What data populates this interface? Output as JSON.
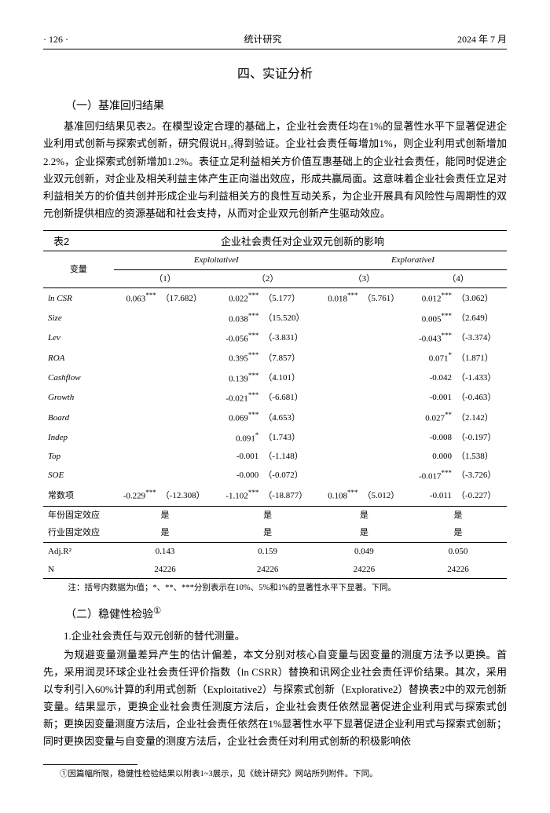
{
  "header": {
    "page": "· 126 ·",
    "journal": "统计研究",
    "issue": "2024 年 7 月"
  },
  "section": {
    "title": "四、实证分析"
  },
  "sub1": {
    "heading": "（一）基准回归结果",
    "para": "基准回归结果见表2。在模型设定合理的基础上，企业社会责任均在1%的显著性水平下显著促进企业利用式创新与探索式创新，研究假说H₁ₐ得到验证。企业社会责任每增加1%，则企业利用式创新增加2.2%，企业探索式创新增加1.2%。表征立足利益相关方价值互惠基础上的企业社会责任，能同时促进企业双元创新，对企业及相关利益主体产生正向溢出效应，形成共赢局面。这意味着企业社会责任立足对利益相关方的价值共创并形成企业与利益相关方的良性互动关系，为企业开展具有风险性与周期性的双元创新提供相应的资源基础和社会支持，从而对企业双元创新产生驱动效应。"
  },
  "table2": {
    "label": "表2",
    "title": "企业社会责任对企业双元创新的影响",
    "group_heads": [
      "变量",
      "ExploitativeI",
      "ExplorativeI"
    ],
    "cols": [
      "（1）",
      "（2）",
      "（3）",
      "（4）"
    ],
    "rows": [
      {
        "v": "ln CSR",
        "it": true,
        "c": [
          [
            "0.063",
            "***",
            "（17.682）"
          ],
          [
            "0.022",
            "***",
            "（5.177）"
          ],
          [
            "0.018",
            "***",
            "（5.761）"
          ],
          [
            "0.012",
            "***",
            "（3.062）"
          ]
        ]
      },
      {
        "v": "Size",
        "it": true,
        "c": [
          [
            "",
            "",
            ""
          ],
          [
            "0.038",
            "***",
            "（15.520）"
          ],
          [
            "",
            "",
            ""
          ],
          [
            "0.005",
            "***",
            "（2.649）"
          ]
        ]
      },
      {
        "v": "Lev",
        "it": true,
        "c": [
          [
            "",
            "",
            ""
          ],
          [
            "-0.056",
            "***",
            "（-3.831）"
          ],
          [
            "",
            "",
            ""
          ],
          [
            "-0.043",
            "***",
            "（-3.374）"
          ]
        ]
      },
      {
        "v": "ROA",
        "it": true,
        "c": [
          [
            "",
            "",
            ""
          ],
          [
            "0.395",
            "***",
            "（7.857）"
          ],
          [
            "",
            "",
            ""
          ],
          [
            "0.071",
            "*",
            "（1.871）"
          ]
        ]
      },
      {
        "v": "Cashflow",
        "it": true,
        "c": [
          [
            "",
            "",
            ""
          ],
          [
            "0.139",
            "***",
            "（4.101）"
          ],
          [
            "",
            "",
            ""
          ],
          [
            "-0.042",
            "",
            "（-1.433）"
          ]
        ]
      },
      {
        "v": "Growth",
        "it": true,
        "c": [
          [
            "",
            "",
            ""
          ],
          [
            "-0.021",
            "***",
            "（-6.681）"
          ],
          [
            "",
            "",
            ""
          ],
          [
            "-0.001",
            "",
            "（-0.463）"
          ]
        ]
      },
      {
        "v": "Board",
        "it": true,
        "c": [
          [
            "",
            "",
            ""
          ],
          [
            "0.069",
            "***",
            "（4.653）"
          ],
          [
            "",
            "",
            ""
          ],
          [
            "0.027",
            "**",
            "（2.142）"
          ]
        ]
      },
      {
        "v": "Indep",
        "it": true,
        "c": [
          [
            "",
            "",
            ""
          ],
          [
            "0.091",
            "*",
            "（1.743）"
          ],
          [
            "",
            "",
            ""
          ],
          [
            "-0.008",
            "",
            "（-0.197）"
          ]
        ]
      },
      {
        "v": "Top",
        "it": true,
        "c": [
          [
            "",
            "",
            ""
          ],
          [
            "-0.001",
            "",
            "（-1.148）"
          ],
          [
            "",
            "",
            ""
          ],
          [
            "0.000",
            "",
            "（1.538）"
          ]
        ]
      },
      {
        "v": "SOE",
        "it": true,
        "c": [
          [
            "",
            "",
            ""
          ],
          [
            "-0.000",
            "",
            "（-0.072）"
          ],
          [
            "",
            "",
            ""
          ],
          [
            "-0.017",
            "***",
            "（-3.726）"
          ]
        ]
      },
      {
        "v": "常数项",
        "it": false,
        "c": [
          [
            "-0.229",
            "***",
            "（-12.308）"
          ],
          [
            "-1.102",
            "***",
            "（-18.877）"
          ],
          [
            "0.108",
            "***",
            "（5.012）"
          ],
          [
            "-0.011",
            "",
            "（-0.227）"
          ]
        ]
      }
    ],
    "fe_rows": [
      {
        "v": "年份固定效应",
        "cells": [
          "是",
          "是",
          "是",
          "是"
        ]
      },
      {
        "v": "行业固定效应",
        "cells": [
          "是",
          "是",
          "是",
          "是"
        ]
      }
    ],
    "stat_rows": [
      {
        "v": "Adj.R²",
        "cells": [
          "0.143",
          "0.159",
          "0.049",
          "0.050"
        ]
      },
      {
        "v": "N",
        "cells": [
          "24226",
          "24226",
          "24226",
          "24226"
        ]
      }
    ],
    "note": "注：括号内数据为t值；*、**、***分别表示在10%、5%和1%的显著性水平下显著。下同。"
  },
  "sub2": {
    "heading": "（二）稳健性检验",
    "sup": "①",
    "item1": "1.企业社会责任与双元创新的替代测量。",
    "para": "为规避变量测量差异产生的估计偏差，本文分别对核心自变量与因变量的测度方法予以更换。首先，采用润灵环球企业社会责任评价指数（ln CSRR）替换和讯网企业社会责任评价结果。其次，采用以专利引入60%计算的利用式创新（Exploitative2）与探索式创新（Explorative2）替换表2中的双元创新变量。结果显示，更换企业社会责任测度方法后，企业社会责任依然显著促进企业利用式与探索式创新；更换因变量测度方法后，企业社会责任依然在1%显著性水平下显著促进企业利用式与探索式创新；同时更换因变量与自变量的测度方法后，企业社会责任对利用式创新的积极影响依"
  },
  "footnote": "①因篇幅所限，稳健性检验结果以附表1~3展示，见《统计研究》网站所列附件。下同。"
}
